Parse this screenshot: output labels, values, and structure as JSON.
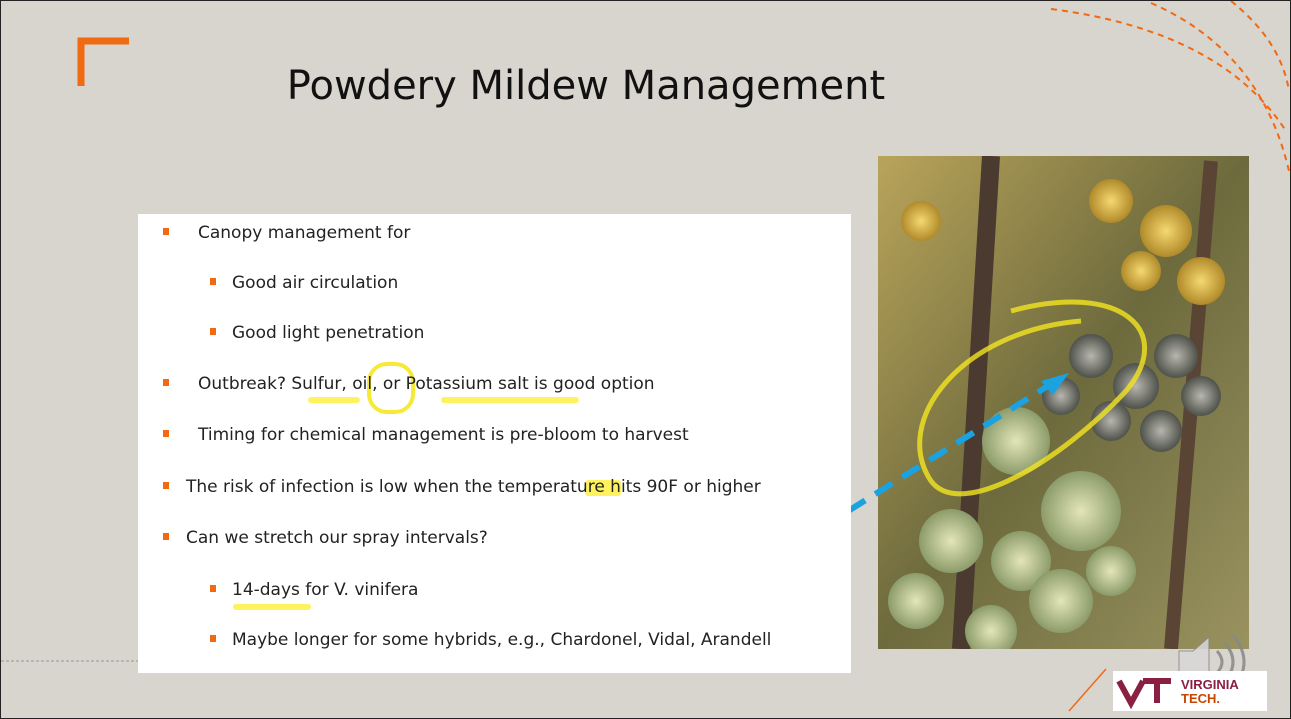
{
  "slide": {
    "title": "Powdery Mildew Management",
    "bullets": [
      "Canopy management for",
      "Good air circulation",
      "Good light penetration",
      "Outbreak? Sulfur, oil, or Potassium salt is good option",
      "Timing for chemical management is pre-bloom to harvest",
      "The risk of infection is low when the temperature hits 90F or higher",
      "Can we stretch our spray intervals?",
      "14-days for V. vinifera",
      "Maybe longer for some hybrids, e.g., Chardonel, Vidal, Arandell"
    ],
    "logo": {
      "line1": "VIRGINIA",
      "line2": "TECH."
    }
  }
}
